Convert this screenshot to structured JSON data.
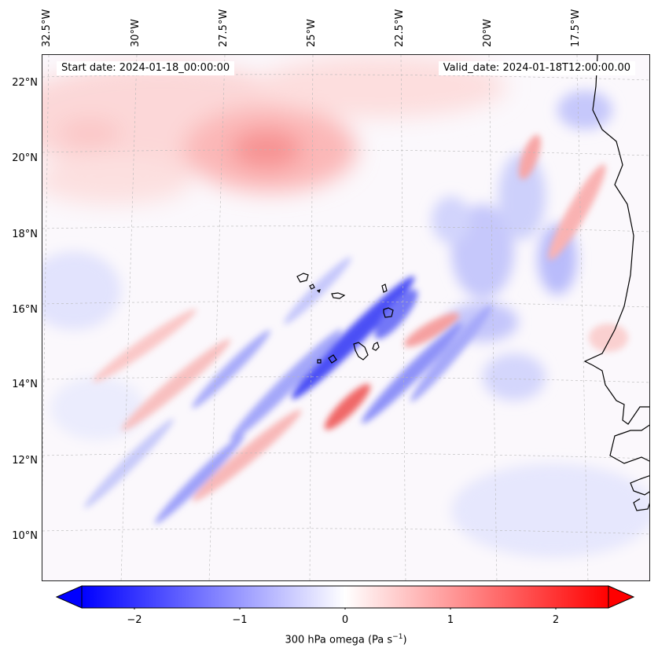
{
  "header": {
    "start_date_label": "Start date: 2024-01-18_00:00:00",
    "valid_date_label": "Valid_date: 2024-01-18T12:00:00.00"
  },
  "axes": {
    "lat_labels": [
      "22°N",
      "20°N",
      "18°N",
      "16°N",
      "14°N",
      "12°N",
      "10°N"
    ],
    "lon_labels": [
      "32.5°W",
      "30°W",
      "27.5°W",
      "25°W",
      "22.5°W",
      "20°W",
      "17.5°W"
    ]
  },
  "colorbar": {
    "title": "300 hPa omega (Pa s",
    "title_exp": "−1",
    "title_end": ")",
    "ticks": [
      "−2",
      "−1",
      "0",
      "1",
      "2"
    ],
    "min": -2.7,
    "max": 2.7,
    "colormap": "bwr",
    "low_color": "#0000ff",
    "mid_color": "#ffffff",
    "high_color": "#ff0000"
  },
  "map": {
    "field": "300 hPa omega",
    "units": "Pa s-1",
    "gridlines": "dashed",
    "features": [
      "west-africa-coastline",
      "cape-verde-islands"
    ]
  }
}
